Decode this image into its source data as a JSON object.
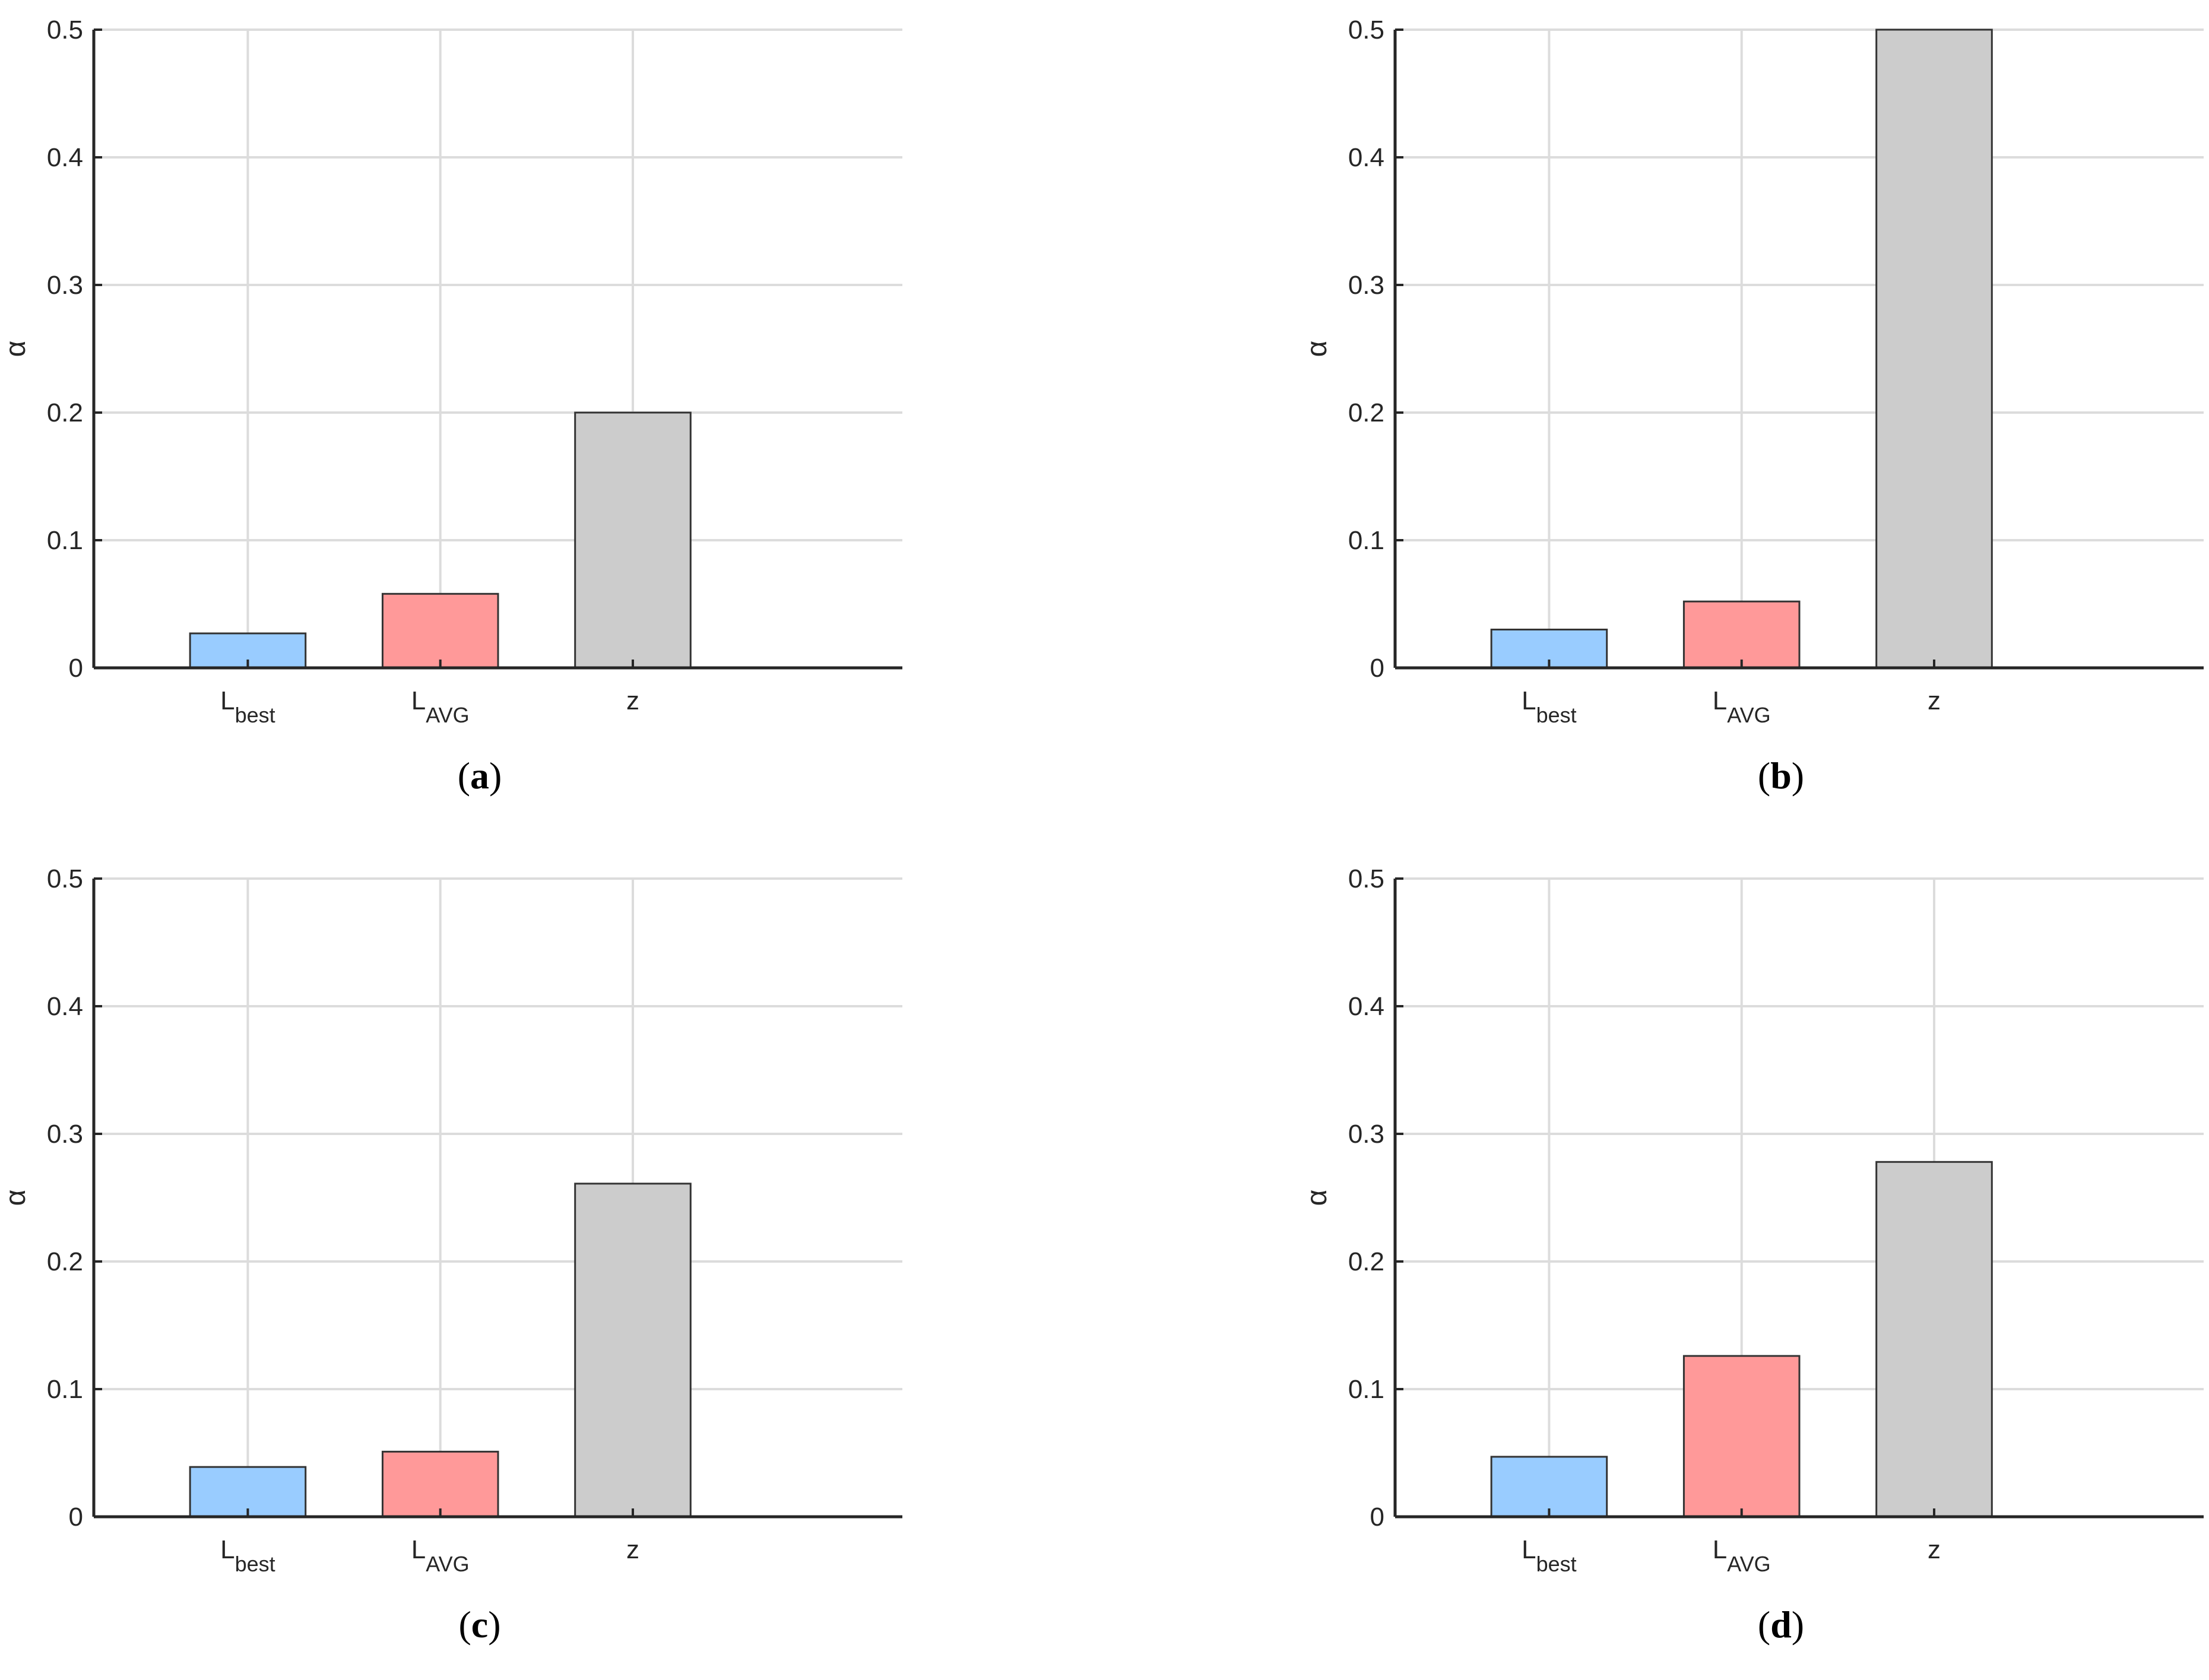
{
  "chart_data": [
    {
      "type": "bar",
      "panel_label": "a",
      "categories": [
        "L_best",
        "L_AVG",
        "z"
      ],
      "category_labels": [
        {
          "main": "L",
          "sub": "best"
        },
        {
          "main": "L",
          "sub": "AVG"
        },
        {
          "main": "z",
          "sub": ""
        }
      ],
      "values": [
        0.027,
        0.058,
        0.2
      ],
      "colors": [
        "#99ccff",
        "#ff9999",
        "#cccccc"
      ],
      "ylabel": "α",
      "ylim": [
        0,
        0.5
      ],
      "yticks": [
        0,
        0.1,
        0.2,
        0.3,
        0.4,
        0.5
      ],
      "ytick_labels": [
        "0",
        "0.1",
        "0.2",
        "0.3",
        "0.4",
        "0.5"
      ],
      "grid": true
    },
    {
      "type": "bar",
      "panel_label": "b",
      "categories": [
        "L_best",
        "L_AVG",
        "z"
      ],
      "category_labels": [
        {
          "main": "L",
          "sub": "best"
        },
        {
          "main": "L",
          "sub": "AVG"
        },
        {
          "main": "z",
          "sub": ""
        }
      ],
      "values": [
        0.03,
        0.052,
        0.5
      ],
      "colors": [
        "#99ccff",
        "#ff9999",
        "#cccccc"
      ],
      "ylabel": "α",
      "ylim": [
        0,
        0.5
      ],
      "yticks": [
        0,
        0.1,
        0.2,
        0.3,
        0.4,
        0.5
      ],
      "ytick_labels": [
        "0",
        "0.1",
        "0.2",
        "0.3",
        "0.4",
        "0.5"
      ],
      "grid": true
    },
    {
      "type": "bar",
      "panel_label": "c",
      "categories": [
        "L_best",
        "L_AVG",
        "z"
      ],
      "category_labels": [
        {
          "main": "L",
          "sub": "best"
        },
        {
          "main": "L",
          "sub": "AVG"
        },
        {
          "main": "z",
          "sub": ""
        }
      ],
      "values": [
        0.039,
        0.051,
        0.261
      ],
      "colors": [
        "#99ccff",
        "#ff9999",
        "#cccccc"
      ],
      "ylabel": "α",
      "ylim": [
        0,
        0.5
      ],
      "yticks": [
        0,
        0.1,
        0.2,
        0.3,
        0.4,
        0.5
      ],
      "ytick_labels": [
        "0",
        "0.1",
        "0.2",
        "0.3",
        "0.4",
        "0.5"
      ],
      "grid": true
    },
    {
      "type": "bar",
      "panel_label": "d",
      "categories": [
        "L_best",
        "L_AVG",
        "z"
      ],
      "category_labels": [
        {
          "main": "L",
          "sub": "best"
        },
        {
          "main": "L",
          "sub": "AVG"
        },
        {
          "main": "z",
          "sub": ""
        }
      ],
      "values": [
        0.047,
        0.126,
        0.278
      ],
      "colors": [
        "#99ccff",
        "#ff9999",
        "#cccccc"
      ],
      "ylabel": "α",
      "ylim": [
        0,
        0.5
      ],
      "yticks": [
        0,
        0.1,
        0.2,
        0.3,
        0.4,
        0.5
      ],
      "ytick_labels": [
        "0",
        "0.1",
        "0.2",
        "0.3",
        "0.4",
        "0.5"
      ],
      "grid": true
    }
  ]
}
